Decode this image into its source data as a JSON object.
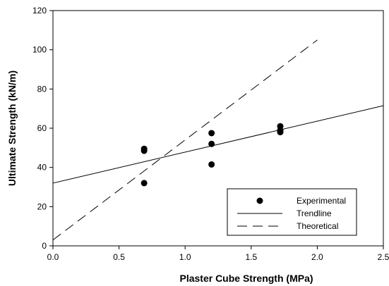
{
  "chart_data": {
    "type": "scatter",
    "xlabel": "Plaster Cube Strength (MPa)",
    "ylabel": "Ultimate Strength (kN/m)",
    "xlim": [
      0.0,
      2.5
    ],
    "ylim": [
      0,
      120
    ],
    "x_ticks": [
      "0.0",
      "0.5",
      "1.0",
      "1.5",
      "2.0",
      "2.5"
    ],
    "y_ticks": [
      "0",
      "20",
      "40",
      "60",
      "80",
      "100",
      "120"
    ],
    "grid": false,
    "legend_position": "bottom-right",
    "series": [
      {
        "name": "Experimental",
        "kind": "markers",
        "color": "#000000",
        "points": [
          {
            "x": 0.69,
            "y": 49.5
          },
          {
            "x": 0.69,
            "y": 48.5
          },
          {
            "x": 0.69,
            "y": 32.0
          },
          {
            "x": 1.2,
            "y": 57.5
          },
          {
            "x": 1.2,
            "y": 52.0
          },
          {
            "x": 1.2,
            "y": 41.5
          },
          {
            "x": 1.72,
            "y": 61.0
          },
          {
            "x": 1.72,
            "y": 59.0
          },
          {
            "x": 1.72,
            "y": 58.0
          }
        ]
      },
      {
        "name": "Trendline",
        "kind": "solid-line",
        "color": "#000000",
        "points": [
          {
            "x": 0.0,
            "y": 32.0
          },
          {
            "x": 2.5,
            "y": 71.5
          }
        ]
      },
      {
        "name": "Theoretical",
        "kind": "dashed-line",
        "color": "#000000",
        "points": [
          {
            "x": 0.0,
            "y": 3.0
          },
          {
            "x": 2.0,
            "y": 105.0
          }
        ]
      }
    ]
  }
}
